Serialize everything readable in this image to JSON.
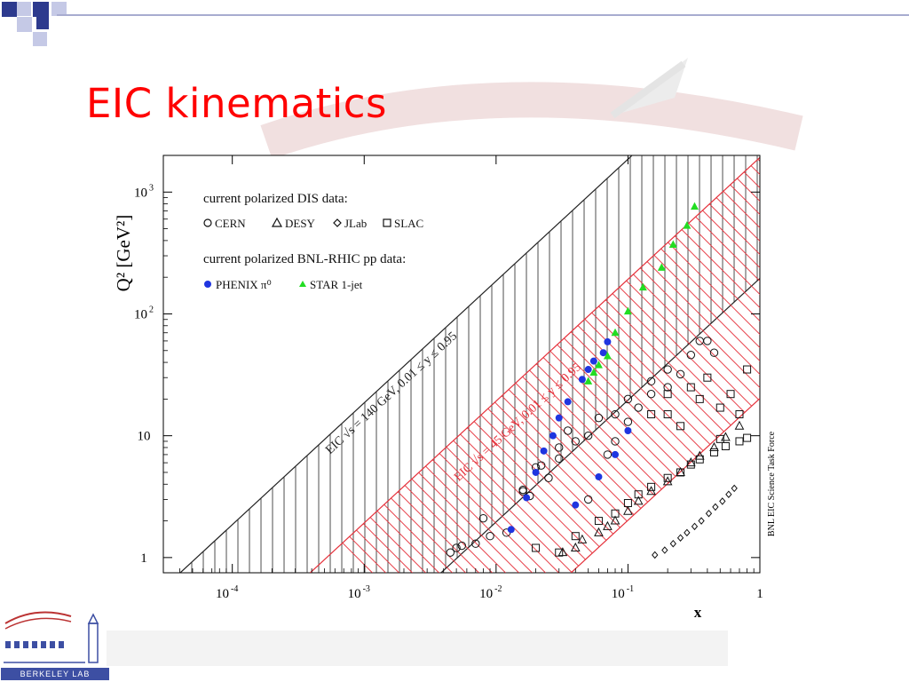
{
  "slide": {
    "title": "EIC kinematics",
    "logo_text": "BERKELEY LAB",
    "colors": {
      "title": "#ff0000",
      "accent": "#3d4fa3",
      "band_red": "#e5303a",
      "phenix": "#1f35e0",
      "star": "#22dd22"
    }
  },
  "chart_data": {
    "type": "scatter",
    "xlabel": "x",
    "ylabel": "Q² [GeV²]",
    "x_scale": "log",
    "y_scale": "log",
    "xlim": [
      3e-05,
      1
    ],
    "ylim": [
      0.75,
      2000
    ],
    "x_ticks": [
      {
        "value": 0.0001,
        "label": "10",
        "exp": "-4"
      },
      {
        "value": 0.001,
        "label": "10",
        "exp": "-3"
      },
      {
        "value": 0.01,
        "label": "10",
        "exp": "-2"
      },
      {
        "value": 0.1,
        "label": "10",
        "exp": "-1"
      },
      {
        "value": 1,
        "label": "1",
        "exp": ""
      }
    ],
    "y_ticks": [
      {
        "value": 1,
        "label": "1",
        "exp": ""
      },
      {
        "value": 10,
        "label": "10",
        "exp": ""
      },
      {
        "value": 100,
        "label": "10",
        "exp": "2"
      },
      {
        "value": 1000,
        "label": "10",
        "exp": "3"
      }
    ],
    "side_label": "BNL EIC Science Task Force",
    "legend": {
      "position": "top-left",
      "heading1": "current polarized DIS data:",
      "items1": [
        {
          "symbol": "circle",
          "label": "CERN"
        },
        {
          "symbol": "triangle",
          "label": "DESY"
        },
        {
          "symbol": "diamond",
          "label": "JLab"
        },
        {
          "symbol": "square",
          "label": "SLAC"
        }
      ],
      "heading2": "current polarized BNL-RHIC pp data:",
      "items2": [
        {
          "symbol": "filled-circle",
          "label": "PHENIX π⁰"
        },
        {
          "symbol": "filled-triangle",
          "label": "STAR 1-jet"
        }
      ]
    },
    "bands": [
      {
        "name": "EIC √s = 140 GeV, 0.01 ≤ y ≤ 0.95",
        "color": "#222222",
        "hatch": "vertical",
        "s": 19600,
        "label_at": {
          "x": 0.00055,
          "y": 7
        }
      },
      {
        "name": "EIC √s = 45 GeV, 0.01 ≤ y ≤ 0.95",
        "color": "#e5303a",
        "hatch": "diagonal",
        "s": 2025,
        "label_at": {
          "x": 0.0052,
          "y": 4.2
        }
      }
    ],
    "series": [
      {
        "name": "CERN",
        "marker": "circle",
        "points": [
          [
            0.0045,
            1.1
          ],
          [
            0.005,
            1.2
          ],
          [
            0.0055,
            1.25
          ],
          [
            0.007,
            1.3
          ],
          [
            0.008,
            2.1
          ],
          [
            0.009,
            1.5
          ],
          [
            0.012,
            1.6
          ],
          [
            0.016,
            3.5
          ],
          [
            0.016,
            3.6
          ],
          [
            0.018,
            3.2
          ],
          [
            0.02,
            5.5
          ],
          [
            0.022,
            5.7
          ],
          [
            0.025,
            4.5
          ],
          [
            0.03,
            6.5
          ],
          [
            0.03,
            8
          ],
          [
            0.035,
            11
          ],
          [
            0.04,
            9
          ],
          [
            0.05,
            10
          ],
          [
            0.05,
            3
          ],
          [
            0.06,
            14
          ],
          [
            0.07,
            7
          ],
          [
            0.08,
            15
          ],
          [
            0.08,
            9
          ],
          [
            0.1,
            13
          ],
          [
            0.1,
            20
          ],
          [
            0.12,
            17
          ],
          [
            0.15,
            22
          ],
          [
            0.15,
            28
          ],
          [
            0.2,
            25
          ],
          [
            0.2,
            35
          ],
          [
            0.25,
            32
          ],
          [
            0.3,
            46
          ],
          [
            0.35,
            60
          ],
          [
            0.4,
            60
          ],
          [
            0.45,
            48
          ]
        ]
      },
      {
        "name": "DESY",
        "marker": "triangle",
        "points": [
          [
            0.032,
            1.1
          ],
          [
            0.04,
            1.2
          ],
          [
            0.045,
            1.4
          ],
          [
            0.06,
            1.6
          ],
          [
            0.07,
            1.8
          ],
          [
            0.08,
            2
          ],
          [
            0.1,
            2.4
          ],
          [
            0.12,
            2.9
          ],
          [
            0.15,
            3.5
          ],
          [
            0.2,
            4.2
          ],
          [
            0.25,
            5
          ],
          [
            0.3,
            6
          ],
          [
            0.35,
            6.8
          ],
          [
            0.45,
            8
          ],
          [
            0.55,
            9.7
          ],
          [
            0.7,
            12
          ]
        ]
      },
      {
        "name": "JLab",
        "marker": "diamond",
        "points": [
          [
            0.16,
            1.05
          ],
          [
            0.19,
            1.15
          ],
          [
            0.22,
            1.3
          ],
          [
            0.25,
            1.45
          ],
          [
            0.28,
            1.6
          ],
          [
            0.32,
            1.8
          ],
          [
            0.36,
            2
          ],
          [
            0.41,
            2.3
          ],
          [
            0.46,
            2.6
          ],
          [
            0.52,
            2.9
          ],
          [
            0.58,
            3.3
          ],
          [
            0.64,
            3.7
          ]
        ]
      },
      {
        "name": "SLAC",
        "marker": "square",
        "points": [
          [
            0.02,
            1.2
          ],
          [
            0.03,
            1.1
          ],
          [
            0.04,
            1.5
          ],
          [
            0.06,
            2
          ],
          [
            0.08,
            2.3
          ],
          [
            0.1,
            2.8
          ],
          [
            0.12,
            3.3
          ],
          [
            0.15,
            3.8
          ],
          [
            0.2,
            4.5
          ],
          [
            0.25,
            5
          ],
          [
            0.3,
            5.8
          ],
          [
            0.35,
            6.4
          ],
          [
            0.45,
            7.3
          ],
          [
            0.55,
            8.2
          ],
          [
            0.7,
            9
          ],
          [
            0.8,
            9.6
          ],
          [
            0.5,
            9.4
          ],
          [
            0.2,
            15
          ],
          [
            0.2,
            22
          ],
          [
            0.3,
            25
          ],
          [
            0.4,
            30
          ],
          [
            0.25,
            12
          ],
          [
            0.5,
            17
          ],
          [
            0.7,
            15
          ],
          [
            0.8,
            35
          ],
          [
            0.6,
            22
          ],
          [
            0.35,
            20
          ],
          [
            0.15,
            15
          ]
        ]
      },
      {
        "name": "PHENIX π⁰",
        "marker": "filled-circle",
        "points": [
          [
            0.013,
            1.7
          ],
          [
            0.017,
            3.1
          ],
          [
            0.02,
            5
          ],
          [
            0.023,
            7.5
          ],
          [
            0.027,
            10
          ],
          [
            0.03,
            14
          ],
          [
            0.035,
            19
          ],
          [
            0.04,
            2.7
          ],
          [
            0.045,
            29
          ],
          [
            0.05,
            35
          ],
          [
            0.055,
            41
          ],
          [
            0.06,
            4.6
          ],
          [
            0.065,
            48
          ],
          [
            0.07,
            59
          ],
          [
            0.08,
            7
          ],
          [
            0.1,
            11
          ]
        ]
      },
      {
        "name": "STAR 1-jet",
        "marker": "filled-triangle",
        "points": [
          [
            0.05,
            28
          ],
          [
            0.055,
            33
          ],
          [
            0.06,
            38
          ],
          [
            0.07,
            45
          ],
          [
            0.08,
            70
          ],
          [
            0.1,
            105
          ],
          [
            0.13,
            165
          ],
          [
            0.18,
            240
          ],
          [
            0.22,
            370
          ],
          [
            0.28,
            530
          ],
          [
            0.32,
            760
          ]
        ]
      }
    ]
  }
}
